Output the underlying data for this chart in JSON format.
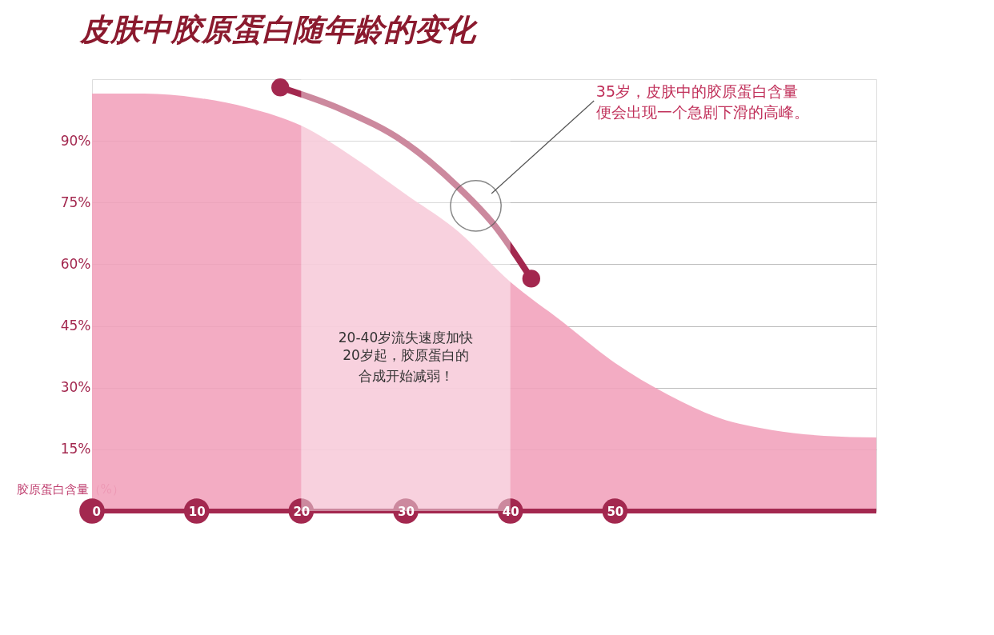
{
  "chart_data": {
    "type": "area",
    "title": "皮肤中胶原蛋白随年龄的变化",
    "ylabel": "胶原蛋白含量（%）",
    "xlim": [
      0,
      75
    ],
    "xticks": [
      0,
      10,
      20,
      30,
      40,
      50
    ],
    "ylim": [
      0,
      105
    ],
    "yticks": [
      {
        "value": 15,
        "label": "15%"
      },
      {
        "value": 30,
        "label": "30%"
      },
      {
        "value": 45,
        "label": "45%"
      },
      {
        "value": 60,
        "label": "60%"
      },
      {
        "value": 75,
        "label": "75%"
      },
      {
        "value": 90,
        "label": "90%"
      }
    ],
    "grid": "y",
    "series": [
      {
        "color": "#f2a3bc",
        "x": [
          0,
          5,
          10,
          15,
          20,
          25,
          30,
          35,
          40,
          45,
          50,
          55,
          60,
          65,
          70,
          75
        ],
        "values": [
          101.5,
          101.5,
          100.5,
          98,
          93.7,
          86,
          77,
          68,
          55.7,
          46,
          36,
          28.4,
          22.6,
          19.7,
          18.3,
          17.9
        ]
      },
      {
        "type": "line",
        "color": "#a3284f",
        "x": [
          18,
          23.9,
          29.8,
          34.9,
          38.5,
          42
        ],
        "values": [
          103,
          97.6,
          89.8,
          79,
          69.4,
          56.5
        ]
      },
      {
        "type": "scatter",
        "color": "#a3284f",
        "x": [
          18,
          42
        ],
        "values": [
          103,
          56.5
        ]
      }
    ],
    "bands": [
      {
        "axis": "x",
        "from": 20,
        "to": 40,
        "color": "#ffffff",
        "label": "20-40岁流失速度加快"
      }
    ],
    "annotations": [
      "35岁，皮肤中的胶原蛋白含量便会出现一个急剧下滑的高峰。",
      "20岁起，胶原蛋白的合成开始减弱！"
    ]
  }
}
